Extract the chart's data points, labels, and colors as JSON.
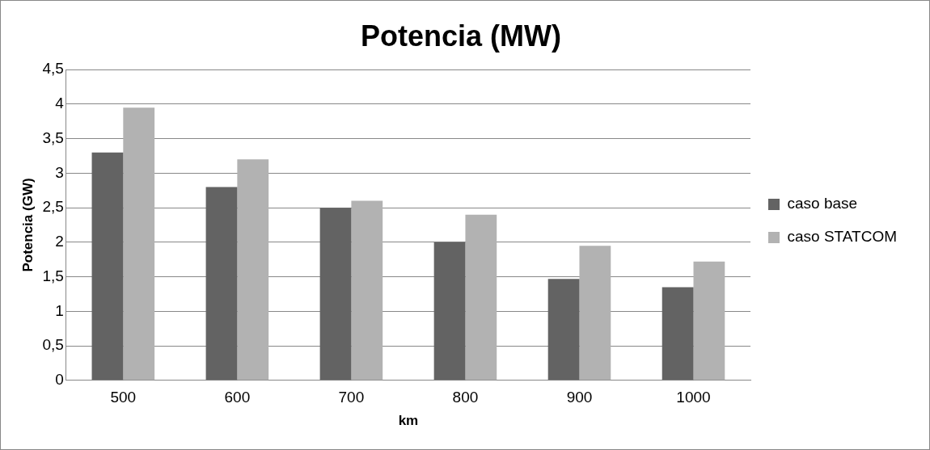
{
  "chart_data": {
    "type": "bar",
    "title": "Potencia (MW)",
    "xlabel": "km",
    "ylabel": "Potencia (GW)",
    "categories": [
      "500",
      "600",
      "700",
      "800",
      "900",
      "1000"
    ],
    "series": [
      {
        "name": "caso base",
        "color": "#636363",
        "values": [
          3.3,
          2.8,
          2.5,
          2.0,
          1.47,
          1.35
        ]
      },
      {
        "name": "caso STATCOM",
        "color": "#b2b2b2",
        "values": [
          3.95,
          3.2,
          2.6,
          2.4,
          1.95,
          1.72
        ]
      }
    ],
    "ylim": [
      0,
      4.5
    ],
    "yticks": [
      0,
      {
        "value": 0.5,
        "label": "0,5"
      },
      1,
      {
        "value": 1.5,
        "label": "1,5"
      },
      2,
      {
        "value": 2.5,
        "label": "2,5"
      },
      3,
      {
        "value": 3.5,
        "label": "3,5"
      },
      4,
      {
        "value": 4.5,
        "label": "4,5"
      }
    ],
    "grid": "y",
    "legend": "right"
  }
}
